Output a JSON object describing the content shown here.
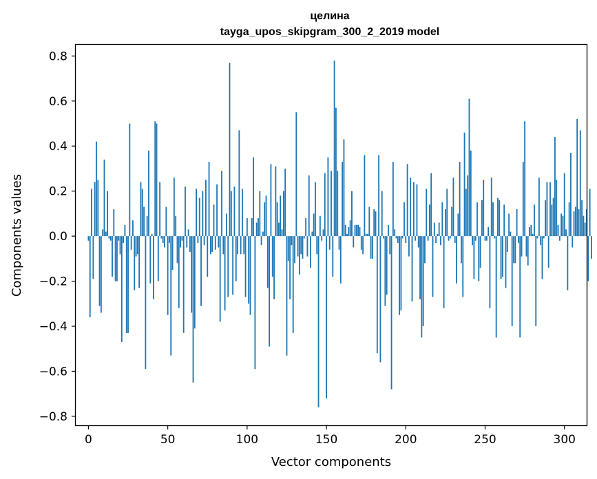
{
  "chart_data": {
    "type": "bar",
    "title": "целина",
    "subtitle": "tayga_upos_skipgram_300_2_2019 model",
    "xlabel": "Vector components",
    "ylabel": "Components values",
    "xlim": [
      -8,
      314
    ],
    "ylim": [
      -0.84,
      0.85
    ],
    "xticks": [
      0,
      50,
      100,
      150,
      200,
      250,
      300
    ],
    "yticks": [
      0.8,
      0.6,
      0.4,
      0.2,
      0.0,
      -0.2,
      -0.4,
      -0.6,
      -0.8
    ],
    "ytick_labels": [
      "0.8",
      "0.6",
      "0.4",
      "0.2",
      "0.0",
      "−0.2",
      "−0.4",
      "−0.6",
      "−0.8"
    ],
    "bar_color": "#1f77b4",
    "grid": false,
    "values": [
      -0.02,
      -0.36,
      0.21,
      -0.19,
      0.24,
      0.42,
      0.25,
      -0.31,
      -0.34,
      0.03,
      0.34,
      0.02,
      0.2,
      -0.01,
      -0.02,
      -0.18,
      0.12,
      -0.2,
      -0.2,
      -0.02,
      -0.08,
      -0.47,
      -0.03,
      0.05,
      -0.43,
      -0.43,
      0.5,
      -0.06,
      0.07,
      -0.24,
      -0.09,
      -0.08,
      -0.23,
      0.24,
      0.21,
      0.13,
      -0.59,
      0.09,
      0.38,
      -0.21,
      0.01,
      -0.28,
      0.51,
      0.5,
      -0.2,
      0.24,
      -0.01,
      -0.03,
      -0.05,
      0.13,
      -0.35,
      -0.03,
      -0.53,
      -0.15,
      0.26,
      0.09,
      -0.12,
      -0.32,
      -0.05,
      -0.02,
      -0.43,
      0.22,
      -0.05,
      0.03,
      -0.07,
      -0.34,
      -0.65,
      -0.41,
      0.21,
      -0.03,
      0.17,
      -0.31,
      0.2,
      -0.04,
      0.25,
      -0.18,
      0.33,
      -0.08,
      -0.07,
      0.14,
      -0.06,
      0.23,
      -0.05,
      -0.38,
      0.29,
      -0.08,
      -0.33,
      0.1,
      -0.27,
      0.77,
      0.2,
      -0.26,
      0.22,
      -0.2,
      -0.08,
      0.47,
      -0.08,
      0.21,
      -0.08,
      -0.27,
      0.08,
      -0.3,
      -0.35,
      0.08,
      0.35,
      -0.59,
      0.06,
      0.08,
      0.2,
      -0.04,
      0.02,
      0.15,
      0.18,
      -0.23,
      -0.49,
      0.32,
      -0.18,
      -0.28,
      0.31,
      0.15,
      0.06,
      0.18,
      0.03,
      0.2,
      0.3,
      -0.53,
      -0.11,
      -0.28,
      -0.04,
      -0.43,
      -0.12,
      0.55,
      -0.09,
      -0.17,
      -0.08,
      -0.1,
      -0.01,
      0.08,
      -0.09,
      0.27,
      -0.14,
      0.02,
      0.1,
      0.24,
      -0.08,
      -0.76,
      0.09,
      -0.02,
      0.03,
      0.28,
      -0.72,
      0.35,
      -0.06,
      0.29,
      -0.18,
      0.78,
      0.57,
      0.29,
      -0.06,
      -0.21,
      0.33,
      0.43,
      0.05,
      0.01,
      0.04,
      0.07,
      0.2,
      -0.05,
      0.05,
      0.05,
      0.05,
      0.04,
      -0.06,
      -0.08,
      0.36,
      0.01,
      0.01,
      0.13,
      -0.1,
      -0.1,
      0.12,
      0.11,
      -0.52,
      0.36,
      -0.56,
      0.2,
      -0.01,
      -0.31,
      -0.26,
      0.05,
      -0.08,
      -0.68,
      0.33,
      0.03,
      -0.01,
      -0.03,
      -0.35,
      -0.33,
      -0.01,
      0.15,
      -0.03,
      0.32,
      -0.09,
      0.26,
      -0.29,
      0.24,
      -0.02,
      0.23,
      -0.05,
      -0.28,
      -0.45,
      -0.4,
      -0.12,
      0.21,
      -0.02,
      0.14,
      0.28,
      -0.27,
      0.06,
      -0.03,
      0.01,
      0.06,
      -0.04,
      0.15,
      -0.32,
      0.12,
      0.21,
      -0.02,
      -0.01,
      0.13,
      0.26,
      -0.03,
      -0.21,
      0.1,
      0.33,
      -0.12,
      -0.27,
      0.46,
      0.21,
      0.27,
      0.61,
      0.38,
      -0.04,
      -0.19,
      -0.02,
      0.15,
      -0.2,
      -0.14,
      0.16,
      0.25,
      -0.02,
      -0.02,
      0.04,
      -0.32,
      0.26,
      0.15,
      -0.01,
      -0.45,
      0.17,
      0.16,
      -0.19,
      -0.18,
      0.14,
      -0.23,
      -0.07,
      0.1,
      0.02,
      -0.4,
      -0.12,
      -0.12,
      0.12,
      -0.03,
      -0.45,
      -0.09,
      0.33,
      0.51,
      -0.09,
      -0.13,
      0.04,
      0.05,
      0.01,
      0.14,
      -0.4,
      -0.01,
      0.26,
      -0.04,
      -0.19,
      -0.01,
      0.16,
      0.24,
      -0.14,
      0.24,
      0.14,
      0.17,
      0.44,
      0.25,
      0.05,
      -0.02,
      0.1,
      0.09,
      0.28,
      0.03,
      -0.24,
      0.15,
      0.37,
      -0.05,
      0.11,
      0.13,
      0.52,
      0.12,
      0.47,
      0.16,
      0.09,
      0.06,
      0.12,
      -0.2,
      0.21,
      -0.1
    ]
  }
}
